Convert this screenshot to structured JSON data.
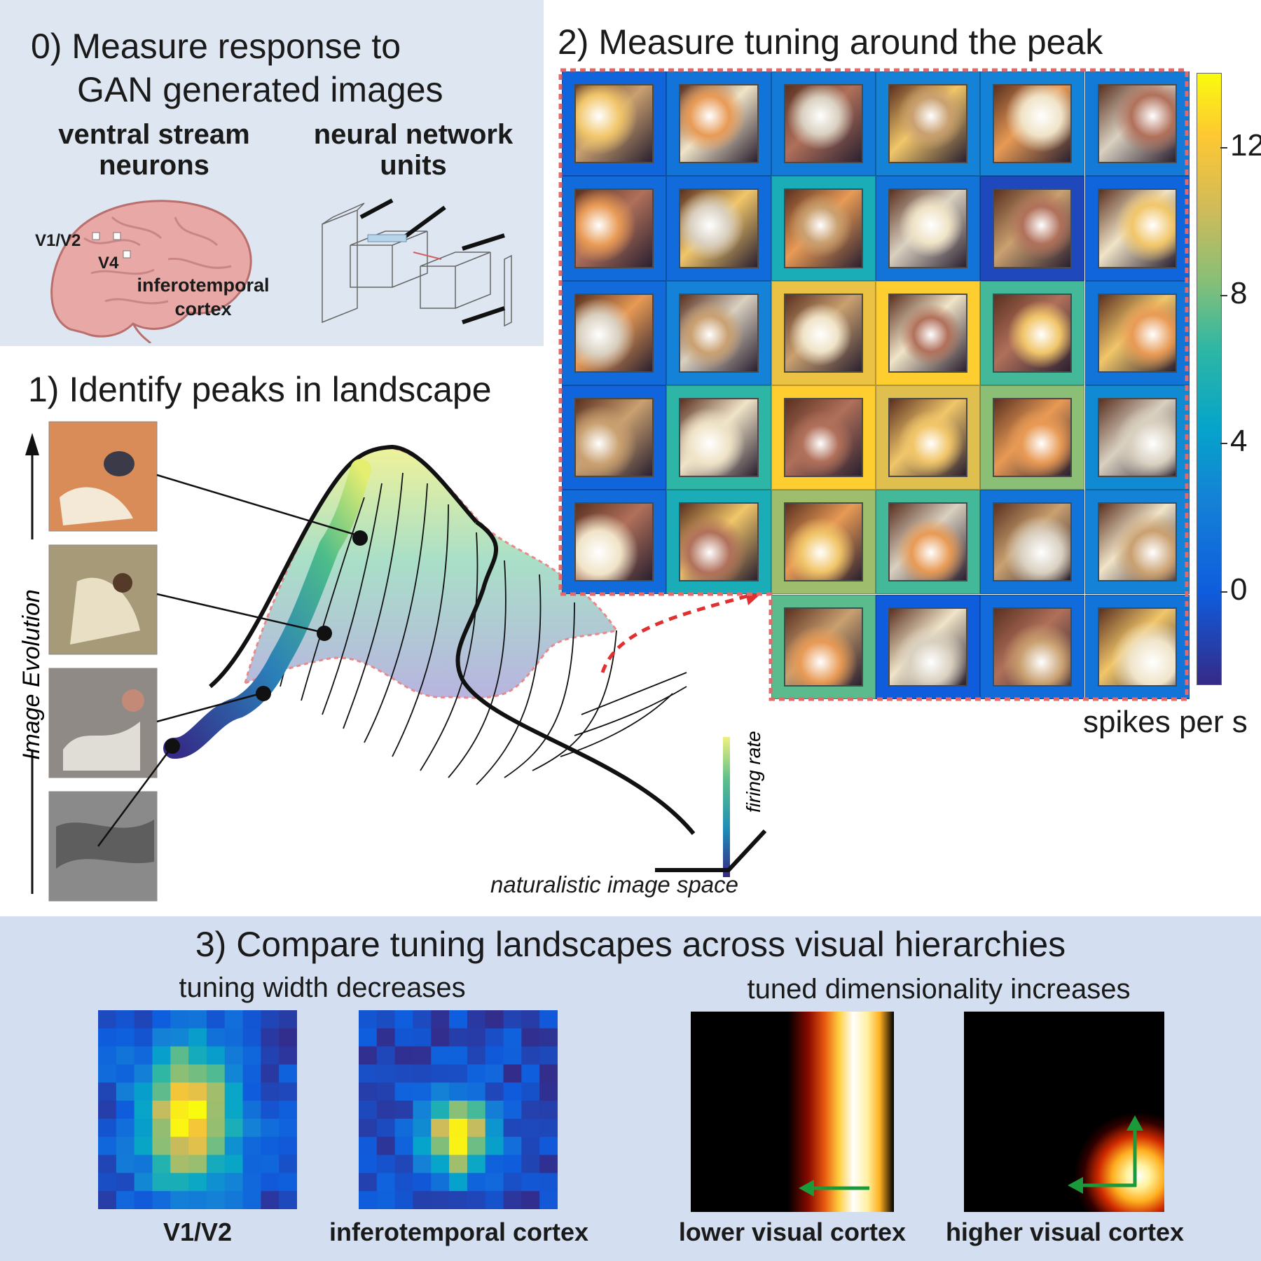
{
  "panel0": {
    "title_line1": "0) Measure response to",
    "title_line2": "GAN generated images",
    "left_heading_line1": "ventral stream",
    "left_heading_line2": "neurons",
    "right_heading_line1": "neural network",
    "right_heading_line2": "units",
    "brain_labels": {
      "v1v2": "V1/V2",
      "v4": "V4",
      "it_line1": "inferotemporal",
      "it_line2": "cortex"
    }
  },
  "panel1": {
    "title": "1) Identify peaks in landscape",
    "y_axis_label": "Image Evolution",
    "firing_rate_label": "firing rate",
    "space_label": "naturalistic image space"
  },
  "panel2": {
    "title": "2) Measure tuning around the peak",
    "colorbar_label": "spikes per s",
    "colorbar_ticks": [
      "12",
      "8",
      "4",
      "0"
    ],
    "colorbar_tick_values": [
      12,
      8,
      4,
      0
    ],
    "colorbar_range": [
      -2.5,
      14
    ],
    "grid_values": [
      [
        0.5,
        1.5,
        2,
        2.5,
        2.5,
        2
      ],
      [
        1,
        1,
        5.5,
        1.5,
        -1,
        0.5
      ],
      [
        1,
        2.5,
        11.5,
        12.5,
        7,
        1.5
      ],
      [
        0.5,
        6.5,
        12.5,
        11,
        8.5,
        3
      ],
      [
        1,
        5.5,
        9,
        7,
        1.5,
        2.5
      ],
      [
        null,
        null,
        7.5,
        0,
        1,
        1.5
      ]
    ]
  },
  "panel3": {
    "title": "3) Compare tuning landscapes across visual hierarchies",
    "left_subtitle": "tuning width decreases",
    "right_subtitle": "tuned dimensionality increases",
    "labels": [
      "V1/V2",
      "inferotemporal cortex",
      "lower visual cortex",
      "higher visual cortex"
    ]
  },
  "colors": {
    "panel0_bg": "#dde6f1",
    "panel3_bg": "#d3dff0",
    "parula_low": "#352a87",
    "parula_high": "#f9fb0e",
    "dashed_red": "#e03030",
    "arrow_green": "#1a9a3a"
  }
}
